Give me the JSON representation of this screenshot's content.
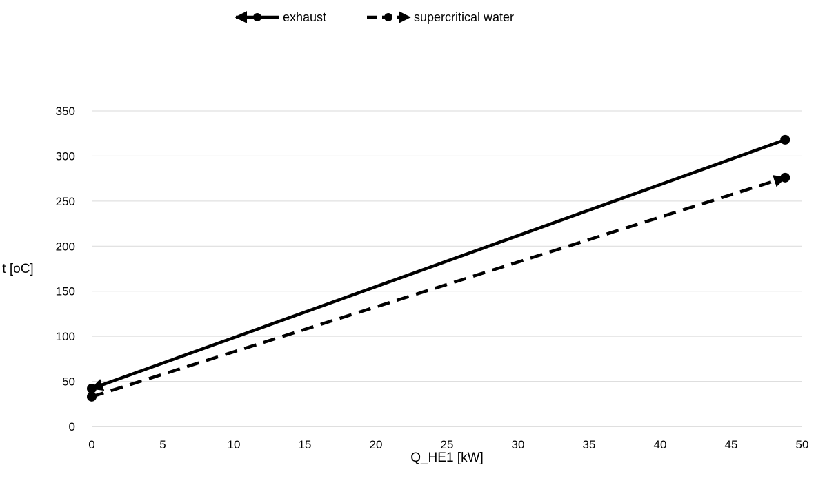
{
  "chart_data": {
    "type": "line",
    "xlabel": "Q_HE1 [kW]",
    "ylabel": "t [oC]",
    "xlim": [
      0,
      50
    ],
    "ylim": [
      0,
      350
    ],
    "xticks": [
      0,
      5,
      10,
      15,
      20,
      25,
      30,
      35,
      40,
      45,
      50
    ],
    "yticks": [
      0,
      50,
      100,
      150,
      200,
      250,
      300,
      350
    ],
    "grid": "horizontal",
    "legend": "top",
    "series": [
      {
        "name": "exhaust",
        "style": "solid",
        "arrow": "start",
        "color": "#000000",
        "x": [
          0,
          48.8
        ],
        "y": [
          42,
          318
        ]
      },
      {
        "name": "supercritical water",
        "style": "dashed",
        "arrow": "end",
        "color": "#000000",
        "x": [
          0,
          48.8
        ],
        "y": [
          33,
          276
        ]
      }
    ]
  }
}
